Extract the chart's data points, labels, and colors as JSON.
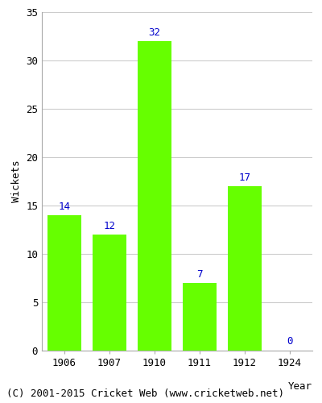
{
  "categories": [
    "1906",
    "1907",
    "1910",
    "1911",
    "1912",
    "1924"
  ],
  "values": [
    14,
    12,
    32,
    7,
    17,
    0
  ],
  "bar_color": "#66ff00",
  "bar_edge_color": "#66ff00",
  "label_color": "#0000cc",
  "xlabel": "Year",
  "ylabel": "Wickets",
  "ylim": [
    0,
    35
  ],
  "yticks": [
    0,
    5,
    10,
    15,
    20,
    25,
    30,
    35
  ],
  "grid_color": "#cccccc",
  "background_color": "#ffffff",
  "footer": "(C) 2001-2015 Cricket Web (www.cricketweb.net)",
  "label_fontsize": 9,
  "axis_fontsize": 9,
  "footer_fontsize": 9
}
